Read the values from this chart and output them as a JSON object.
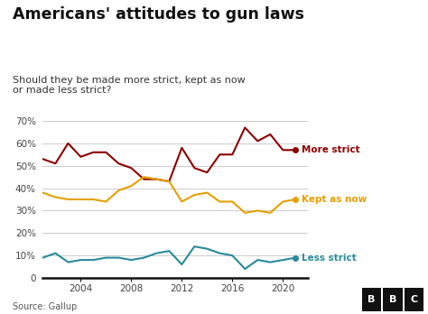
{
  "title": "Americans' attitudes to gun laws",
  "subtitle": "Should they be made more strict, kept as now\nor made less strict?",
  "source": "Source: Gallup",
  "bg_color": "#ffffff",
  "more_strict": {
    "years": [
      2001,
      2002,
      2003,
      2004,
      2005,
      2006,
      2007,
      2008,
      2009,
      2010,
      2011,
      2012,
      2013,
      2014,
      2015,
      2016,
      2017,
      2018,
      2019,
      2020,
      2021
    ],
    "values": [
      53,
      51,
      60,
      54,
      56,
      56,
      51,
      49,
      44,
      44,
      43,
      58,
      49,
      47,
      55,
      55,
      67,
      61,
      64,
      57,
      57
    ],
    "color": "#8b0000",
    "label": "More strict"
  },
  "kept_as_now": {
    "years": [
      2001,
      2002,
      2003,
      2004,
      2005,
      2006,
      2007,
      2008,
      2009,
      2010,
      2011,
      2012,
      2013,
      2014,
      2015,
      2016,
      2017,
      2018,
      2019,
      2020,
      2021
    ],
    "values": [
      38,
      36,
      35,
      35,
      35,
      34,
      39,
      41,
      45,
      44,
      43,
      34,
      37,
      38,
      34,
      34,
      29,
      30,
      29,
      34,
      35
    ],
    "color": "#e5a000",
    "label": "Kept as now"
  },
  "less_strict": {
    "years": [
      2001,
      2002,
      2003,
      2004,
      2005,
      2006,
      2007,
      2008,
      2009,
      2010,
      2011,
      2012,
      2013,
      2014,
      2015,
      2016,
      2017,
      2018,
      2019,
      2020,
      2021
    ],
    "values": [
      9,
      11,
      7,
      8,
      8,
      9,
      9,
      8,
      9,
      11,
      12,
      6,
      14,
      13,
      11,
      10,
      4,
      8,
      7,
      8,
      9
    ],
    "color": "#2a8a9a",
    "label": "Less strict"
  },
  "ylim": [
    0,
    70
  ],
  "yticks": [
    0,
    10,
    20,
    30,
    40,
    50,
    60,
    70
  ],
  "xlim": [
    2001,
    2022
  ],
  "xticks": [
    2004,
    2008,
    2012,
    2016,
    2020
  ]
}
